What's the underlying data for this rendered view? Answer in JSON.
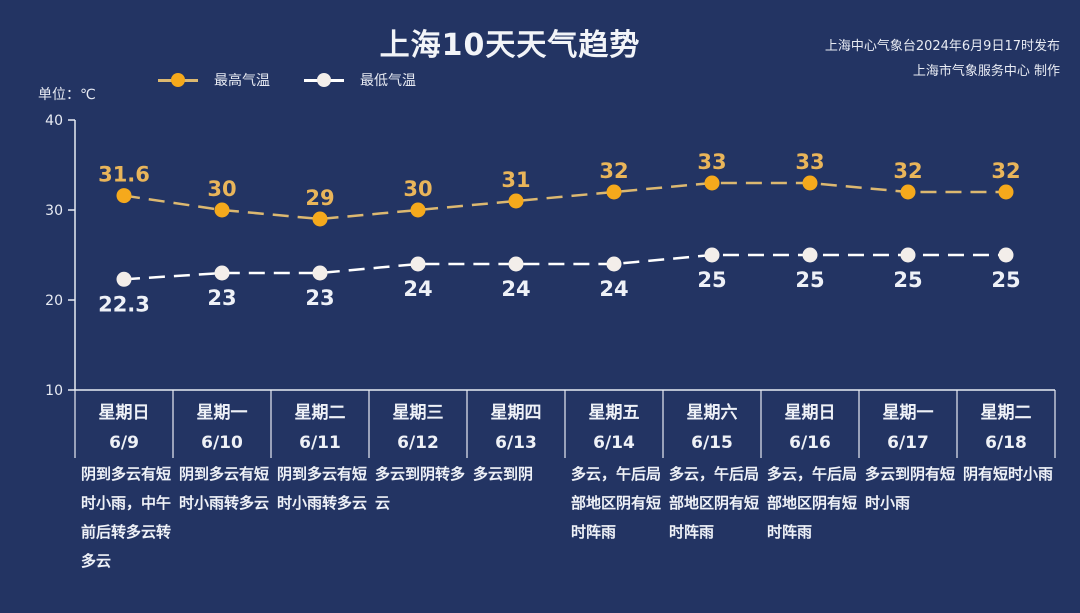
{
  "header": {
    "title": "上海10天天气趋势",
    "publisher_line1": "上海中心气象台2024年6月9日17时发布",
    "publisher_line2": "上海市气象服务中心 制作"
  },
  "legend": {
    "high_label": "最高气温",
    "low_label": "最低气温"
  },
  "unit_label": "单位：℃",
  "colors": {
    "background": "#233463",
    "high": "#f5a91c",
    "high_line": "#dcb870",
    "high_label": "#e9b55a",
    "low": "#f3eeea",
    "axis": "#e8ebf3"
  },
  "days": [
    {
      "weekday": "星期日",
      "date": "6/9",
      "desc": "阴到多云有短时小雨，中午前后转多云转多云"
    },
    {
      "weekday": "星期一",
      "date": "6/10",
      "desc": "阴到多云有短时小雨转多云"
    },
    {
      "weekday": "星期二",
      "date": "6/11",
      "desc": "阴到多云有短时小雨转多云"
    },
    {
      "weekday": "星期三",
      "date": "6/12",
      "desc": "多云到阴转多云"
    },
    {
      "weekday": "星期四",
      "date": "6/13",
      "desc": "多云到阴"
    },
    {
      "weekday": "星期五",
      "date": "6/14",
      "desc": "多云，午后局部地区阴有短时阵雨"
    },
    {
      "weekday": "星期六",
      "date": "6/15",
      "desc": "多云，午后局部地区阴有短时阵雨"
    },
    {
      "weekday": "星期日",
      "date": "6/16",
      "desc": "多云，午后局部地区阴有短时阵雨"
    },
    {
      "weekday": "星期一",
      "date": "6/17",
      "desc": "多云到阴有短时小雨"
    },
    {
      "weekday": "星期二",
      "date": "6/18",
      "desc": "阴有短时小雨"
    }
  ],
  "chart_data": {
    "type": "line",
    "title": "上海10天天气趋势",
    "xlabel": "",
    "ylabel": "单位：℃",
    "categories": [
      "6/9",
      "6/10",
      "6/11",
      "6/12",
      "6/13",
      "6/14",
      "6/15",
      "6/16",
      "6/17",
      "6/18"
    ],
    "series": [
      {
        "name": "最高气温",
        "values": [
          31.6,
          30,
          29,
          30,
          31,
          32,
          33,
          33,
          32,
          32
        ],
        "color": "#f5a91c",
        "style": "dashed"
      },
      {
        "name": "最低气温",
        "values": [
          22.3,
          23,
          23,
          24,
          24,
          24,
          25,
          25,
          25,
          25
        ],
        "color": "#f3eeea",
        "style": "dashed"
      }
    ],
    "yticks": [
      10,
      20,
      30,
      40
    ],
    "ylim": [
      10,
      40
    ],
    "grid": false,
    "legend_position": "top-left",
    "data_labels": true
  }
}
